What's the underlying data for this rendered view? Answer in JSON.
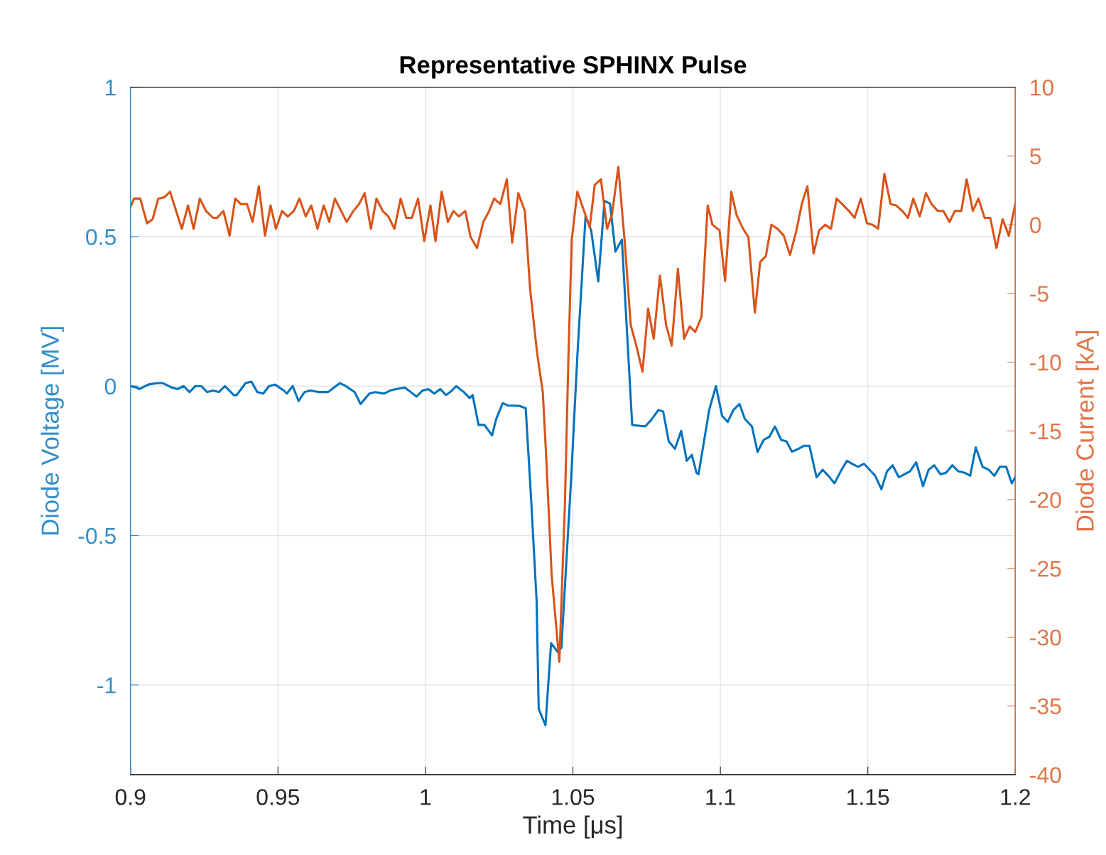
{
  "chart_data": {
    "type": "line",
    "title": "Representative SPHINX Pulse",
    "xlabel": "Time [μs]",
    "ylabel": "Diode Voltage [MV]",
    "y2label": "Diode Current [kA]",
    "xlim": [
      0.9,
      1.2
    ],
    "xticks": [
      0.9,
      0.95,
      1,
      1.05,
      1.1,
      1.15,
      1.2
    ],
    "ylim": [
      -1.3,
      1
    ],
    "yticks": [
      -1,
      -0.5,
      0,
      0.5,
      1
    ],
    "y2lim": [
      -40,
      10
    ],
    "y2ticks": [
      -40,
      -35,
      -30,
      -25,
      -20,
      -15,
      -10,
      -5,
      0,
      5,
      10
    ],
    "grid": true,
    "marker": "none",
    "line_style": "solid",
    "series": [
      {
        "color": "#0072bd",
        "x": [
          0.9,
          0.902,
          0.903,
          0.906,
          0.909,
          0.911,
          0.914,
          0.916,
          0.918,
          0.92,
          0.922,
          0.924,
          0.926,
          0.928,
          0.93,
          0.932,
          0.935,
          0.936,
          0.939,
          0.941,
          0.943,
          0.945,
          0.947,
          0.949,
          0.952,
          0.953,
          0.955,
          0.957,
          0.959,
          0.961,
          0.964,
          0.967,
          0.969,
          0.971,
          0.973,
          0.976,
          0.978,
          0.981,
          0.983,
          0.986,
          0.988,
          0.99,
          0.993,
          0.995,
          0.997,
          0.999,
          1.001,
          1.003,
          1.005,
          1.007,
          1.009,
          1.0104,
          1.013,
          1.015,
          1.016,
          1.018,
          1.02,
          1.0226,
          1.024,
          1.0262,
          1.028,
          1.0318,
          1.034,
          1.0359,
          1.0377,
          1.0384,
          1.0407,
          1.0426,
          1.0449,
          1.0461,
          1.0494,
          1.0515,
          1.0543,
          1.0562,
          1.0586,
          1.0607,
          1.0626,
          1.0644,
          1.0666,
          1.0701,
          1.0745,
          1.0764,
          1.079,
          1.0806,
          1.0825,
          1.0846,
          1.0867,
          1.0886,
          1.0903,
          1.0919,
          1.0926,
          1.0962,
          1.0985,
          1.1006,
          1.1025,
          1.1044,
          1.1065,
          1.1083,
          1.1107,
          1.1126,
          1.1147,
          1.1166,
          1.1185,
          1.1206,
          1.1224,
          1.1243,
          1.1264,
          1.1283,
          1.1302,
          1.1326,
          1.1347,
          1.1366,
          1.1387,
          1.1408,
          1.1429,
          1.1447,
          1.1466,
          1.1487,
          1.1506,
          1.1525,
          1.1546,
          1.1565,
          1.1584,
          1.1605,
          1.1624,
          1.1643,
          1.1664,
          1.1687,
          1.1706,
          1.1725,
          1.1746,
          1.1765,
          1.1786,
          1.1807,
          1.1828,
          1.1847,
          1.1866,
          1.1889,
          1.191,
          1.1929,
          1.1948,
          1.1969,
          1.1988,
          1.2
        ],
        "values": [
          0.0,
          -0.005,
          -0.01,
          0.005,
          0.01,
          0.01,
          -0.005,
          -0.01,
          0.0,
          -0.02,
          0.0,
          0.0,
          -0.02,
          -0.015,
          -0.02,
          0.0,
          -0.03,
          -0.03,
          0.01,
          0.015,
          -0.02,
          -0.025,
          0.0,
          0.005,
          -0.015,
          -0.025,
          0.0,
          -0.05,
          -0.02,
          -0.015,
          -0.02,
          -0.02,
          -0.005,
          0.01,
          0.0,
          -0.02,
          -0.06,
          -0.025,
          -0.02,
          -0.025,
          -0.015,
          -0.01,
          -0.005,
          -0.02,
          -0.035,
          -0.015,
          -0.01,
          -0.025,
          -0.01,
          -0.03,
          -0.015,
          0.0,
          -0.02,
          -0.04,
          -0.03,
          -0.13,
          -0.13,
          -0.165,
          -0.11,
          -0.057,
          -0.065,
          -0.066,
          -0.074,
          -0.39,
          -0.72,
          -1.08,
          -1.135,
          -0.86,
          -0.89,
          -0.875,
          -0.31,
          0.1,
          0.57,
          0.52,
          0.35,
          0.62,
          0.61,
          0.45,
          0.49,
          -0.13,
          -0.135,
          -0.115,
          -0.08,
          -0.085,
          -0.185,
          -0.21,
          -0.15,
          -0.25,
          -0.23,
          -0.29,
          -0.295,
          -0.08,
          0.0,
          -0.1,
          -0.12,
          -0.08,
          -0.06,
          -0.11,
          -0.135,
          -0.22,
          -0.18,
          -0.17,
          -0.135,
          -0.18,
          -0.185,
          -0.22,
          -0.21,
          -0.2,
          -0.2,
          -0.305,
          -0.28,
          -0.3,
          -0.325,
          -0.285,
          -0.25,
          -0.26,
          -0.27,
          -0.26,
          -0.28,
          -0.3,
          -0.345,
          -0.285,
          -0.265,
          -0.305,
          -0.295,
          -0.285,
          -0.255,
          -0.335,
          -0.28,
          -0.265,
          -0.295,
          -0.29,
          -0.265,
          -0.285,
          -0.29,
          -0.3,
          -0.205,
          -0.27,
          -0.28,
          -0.3,
          -0.27,
          -0.27,
          -0.325,
          -0.305
        ]
      },
      {
        "color": "#d95319",
        "axis": "y2",
        "x": [
          0.9,
          0.9012,
          0.9033,
          0.9056,
          0.9075,
          0.9094,
          0.9115,
          0.9134,
          0.9174,
          0.9195,
          0.9214,
          0.9235,
          0.9256,
          0.928,
          0.9294,
          0.9315,
          0.9336,
          0.9355,
          0.9374,
          0.9395,
          0.9414,
          0.9435,
          0.9456,
          0.9475,
          0.9493,
          0.9514,
          0.9533,
          0.9554,
          0.9573,
          0.9594,
          0.9613,
          0.9634,
          0.9655,
          0.9674,
          0.9693,
          0.9733,
          0.9756,
          0.9775,
          0.9794,
          0.9815,
          0.9834,
          0.9855,
          0.9874,
          0.9895,
          0.9916,
          0.9935,
          0.9954,
          0.9975,
          0.9996,
          1.0017,
          1.0034,
          1.0055,
          1.0076,
          1.0095,
          1.0113,
          1.0135,
          1.0153,
          1.0175,
          1.0196,
          1.0214,
          1.0233,
          1.0254,
          1.0276,
          1.0294,
          1.0315,
          1.0337,
          1.0355,
          1.0379,
          1.0398,
          1.0409,
          1.0428,
          1.0454,
          1.0473,
          1.0485,
          1.0496,
          1.0515,
          1.0536,
          1.0557,
          1.0574,
          1.0595,
          1.0616,
          1.0633,
          1.0654,
          1.0677,
          1.0696,
          1.0715,
          1.0736,
          1.0755,
          1.0774,
          1.0795,
          1.0816,
          1.0835,
          1.0856,
          1.0877,
          1.0896,
          1.0915,
          1.0936,
          1.0957,
          1.0973,
          1.0997,
          1.1016,
          1.1037,
          1.1055,
          1.1077,
          1.1095,
          1.1117,
          1.1135,
          1.1154,
          1.1173,
          1.1194,
          1.1215,
          1.1236,
          1.1257,
          1.1276,
          1.1295,
          1.1316,
          1.1335,
          1.1356,
          1.1375,
          1.1394,
          1.1436,
          1.1455,
          1.1476,
          1.1497,
          1.1516,
          1.1535,
          1.1556,
          1.1577,
          1.1596,
          1.1617,
          1.1636,
          1.1654,
          1.1676,
          1.1697,
          1.1716,
          1.1737,
          1.1756,
          1.1777,
          1.1795,
          1.1817,
          1.1835,
          1.1856,
          1.1875,
          1.1896,
          1.1915,
          1.1936,
          1.1957,
          1.1978,
          1.2
        ],
        "values": [
          1.3,
          1.9,
          1.9,
          0.1,
          0.4,
          1.9,
          2.0,
          2.4,
          -0.3,
          1.4,
          -0.3,
          1.9,
          1.0,
          0.5,
          0.5,
          1.0,
          -0.8,
          1.9,
          1.5,
          1.5,
          0.2,
          2.8,
          -0.8,
          1.4,
          -0.3,
          1.0,
          0.6,
          1.0,
          1.9,
          0.6,
          1.4,
          -0.3,
          1.4,
          0.2,
          1.9,
          0.2,
          1.0,
          1.5,
          2.3,
          -0.3,
          1.9,
          1.0,
          0.6,
          -0.3,
          1.9,
          0.5,
          0.5,
          1.9,
          -1.2,
          1.4,
          -1.2,
          2.4,
          0.2,
          1.0,
          0.6,
          1.0,
          -0.9,
          -1.7,
          0.2,
          0.9,
          1.9,
          1.5,
          3.3,
          -1.3,
          2.3,
          1.0,
          -4.7,
          -9.4,
          -12.2,
          -16.7,
          -25.5,
          -31.8,
          -20.2,
          -9.5,
          -1.1,
          2.4,
          1.1,
          -0.2,
          2.9,
          3.3,
          -0.3,
          0.8,
          4.2,
          -1.6,
          -7.3,
          -8.8,
          -10.7,
          -6.1,
          -8.3,
          -3.7,
          -7.3,
          -8.8,
          -3.2,
          -8.3,
          -7.4,
          -7.8,
          -6.7,
          1.4,
          0.0,
          -0.4,
          -4.1,
          2.4,
          0.7,
          -0.3,
          -0.9,
          -6.4,
          -2.7,
          -2.3,
          0.0,
          -0.3,
          -0.8,
          -2.2,
          -0.5,
          1.5,
          2.8,
          -2.1,
          -0.4,
          0.0,
          -0.3,
          1.9,
          1.0,
          0.5,
          1.9,
          0.1,
          0.0,
          -0.3,
          3.7,
          1.5,
          1.4,
          1.0,
          0.5,
          1.9,
          0.6,
          2.3,
          1.5,
          1.0,
          1.0,
          0.2,
          1.0,
          1.0,
          3.3,
          1.0,
          1.9,
          0.5,
          0.5,
          -1.7,
          0.4,
          -0.8,
          1.5
        ]
      }
    ]
  }
}
